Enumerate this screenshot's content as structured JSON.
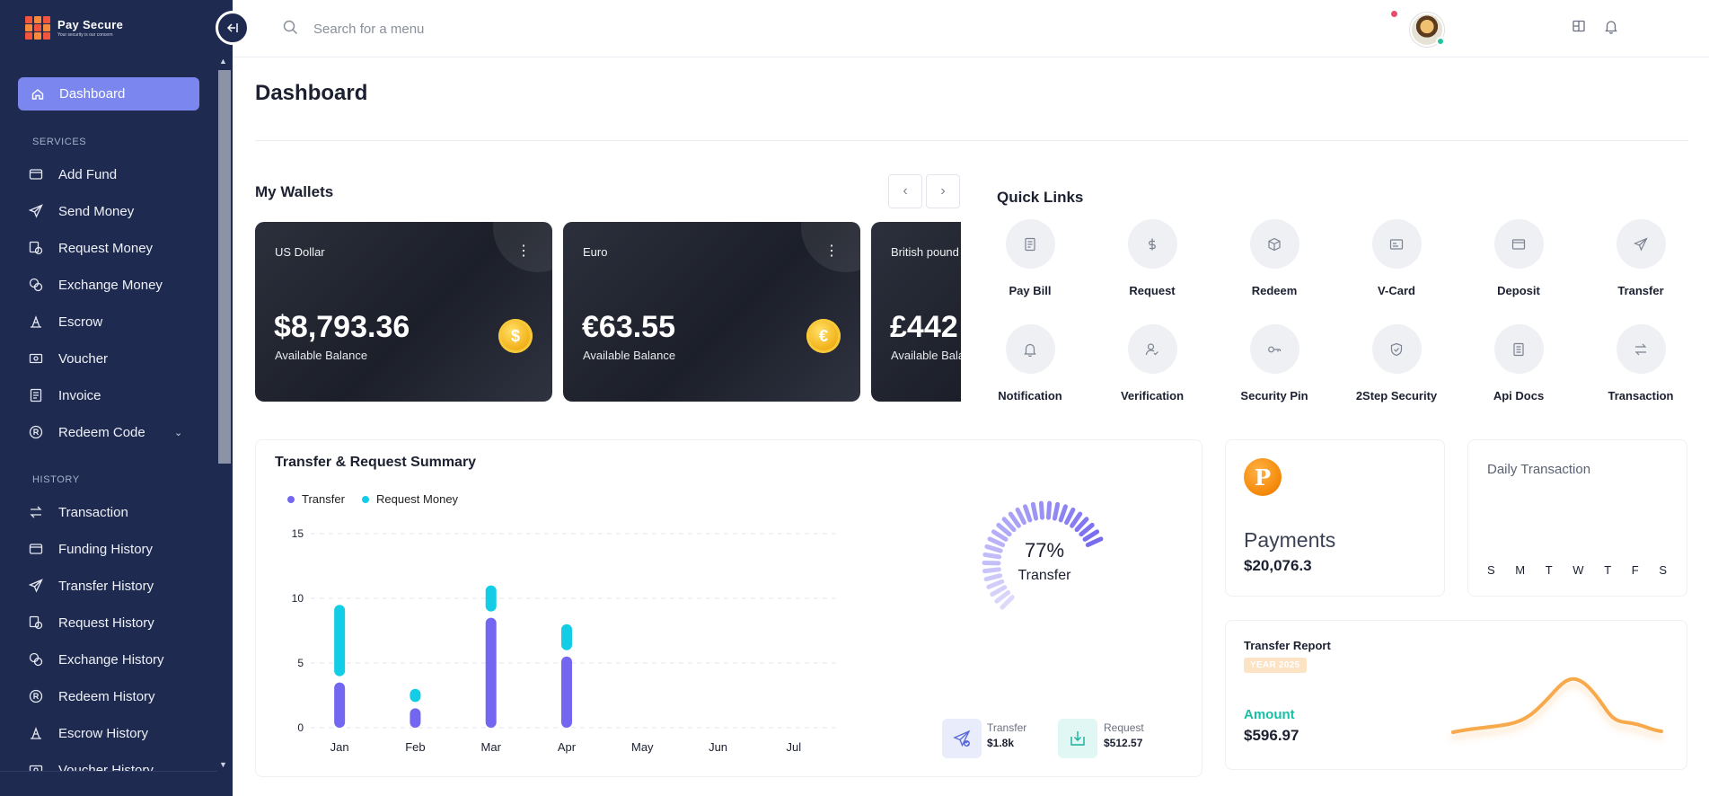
{
  "brand": {
    "name": "Pay Secure",
    "tagline": "Your security is our concern"
  },
  "sidebar": {
    "active": {
      "label": "Dashboard",
      "icon": "home-icon"
    },
    "services_header": "SERVICES",
    "services": [
      {
        "label": "Add Fund",
        "icon": "wallet-icon"
      },
      {
        "label": "Send Money",
        "icon": "send-icon"
      },
      {
        "label": "Request Money",
        "icon": "request-money-icon"
      },
      {
        "label": "Exchange Money",
        "icon": "exchange-coins-icon"
      },
      {
        "label": "Escrow",
        "icon": "escrow-icon"
      },
      {
        "label": "Voucher",
        "icon": "voucher-icon"
      },
      {
        "label": "Invoice",
        "icon": "invoice-icon"
      },
      {
        "label": "Redeem Code",
        "icon": "redeem-icon"
      }
    ],
    "history_header": "HISTORY",
    "history": [
      {
        "label": "Transaction",
        "icon": "transaction-arrows-icon"
      },
      {
        "label": "Funding History",
        "icon": "wallet-icon"
      },
      {
        "label": "Transfer History",
        "icon": "send-icon"
      },
      {
        "label": "Request History",
        "icon": "request-money-icon"
      },
      {
        "label": "Exchange History",
        "icon": "exchange-coins-icon"
      },
      {
        "label": "Redeem History",
        "icon": "redeem-icon"
      },
      {
        "label": "Escrow History",
        "icon": "escrow-icon"
      },
      {
        "label": "Voucher History",
        "icon": "voucher-icon"
      }
    ]
  },
  "topbar": {
    "search_placeholder": "Search for a menu"
  },
  "page": {
    "title": "Dashboard"
  },
  "wallets": {
    "title": "My Wallets",
    "cards": [
      {
        "name": "US Dollar",
        "amount": "$8,793.36",
        "label": "Available Balance",
        "coin": "$"
      },
      {
        "name": "Euro",
        "amount": "€63.55",
        "label": "Available Balance",
        "coin": "€"
      },
      {
        "name": "British pound",
        "amount": "£442",
        "label": "Available Bala"
      }
    ]
  },
  "quick_links": {
    "title": "Quick Links",
    "items": [
      {
        "label": "Pay Bill",
        "icon": "bill-icon"
      },
      {
        "label": "Request",
        "icon": "dollar-icon"
      },
      {
        "label": "Redeem",
        "icon": "box-icon"
      },
      {
        "label": "V-Card",
        "icon": "card-icon"
      },
      {
        "label": "Deposit",
        "icon": "deposit-icon"
      },
      {
        "label": "Transfer",
        "icon": "send-icon"
      },
      {
        "label": "Notification",
        "icon": "bell-icon"
      },
      {
        "label": "Verification",
        "icon": "user-check-icon"
      },
      {
        "label": "Security Pin",
        "icon": "key-icon"
      },
      {
        "label": "2Step Security",
        "icon": "shield-icon"
      },
      {
        "label": "Api Docs",
        "icon": "document-icon"
      },
      {
        "label": "Transaction",
        "icon": "transaction-arrows-icon"
      }
    ]
  },
  "summary": {
    "title": "Transfer & Request Summary",
    "radial": {
      "percent": "77%",
      "label": "Transfer",
      "value": 77
    },
    "totals": [
      {
        "label": "Transfer",
        "value": "$1.8k"
      },
      {
        "label": "Request",
        "value": "$512.57"
      }
    ]
  },
  "chart_data": {
    "type": "bar",
    "categories": [
      "Jan",
      "Feb",
      "Mar",
      "Apr",
      "May",
      "Jun",
      "Jul"
    ],
    "series": [
      {
        "name": "Transfer",
        "values": [
          3.5,
          1.5,
          8.5,
          5.5,
          0,
          0,
          0
        ],
        "color": "#7366f0"
      },
      {
        "name": "Request Money",
        "values": [
          6,
          1.5,
          2.5,
          2.5,
          0,
          0,
          0
        ],
        "color": "#13cde7"
      }
    ],
    "stacked": true,
    "ylim": [
      0,
      15
    ],
    "yticks": [
      0,
      5,
      10,
      15
    ],
    "grid": true,
    "legend_position": "top-left"
  },
  "payments": {
    "title": "Payments",
    "amount": "$20,076.3",
    "badge": "P"
  },
  "daily": {
    "title": "Daily Transaction",
    "days": [
      "S",
      "M",
      "T",
      "W",
      "T",
      "F",
      "S"
    ]
  },
  "transfer_report": {
    "title": "Transfer Report",
    "badge": "YEAR 2025",
    "amount_label": "Amount",
    "amount": "$596.97"
  },
  "colors": {
    "sidebar": "#1e2a4f",
    "accent": "#7b86ee",
    "transfer": "#7366f0",
    "request": "#13cde7",
    "amount_green": "#16c0a4",
    "report_line": "#f7a94b"
  }
}
